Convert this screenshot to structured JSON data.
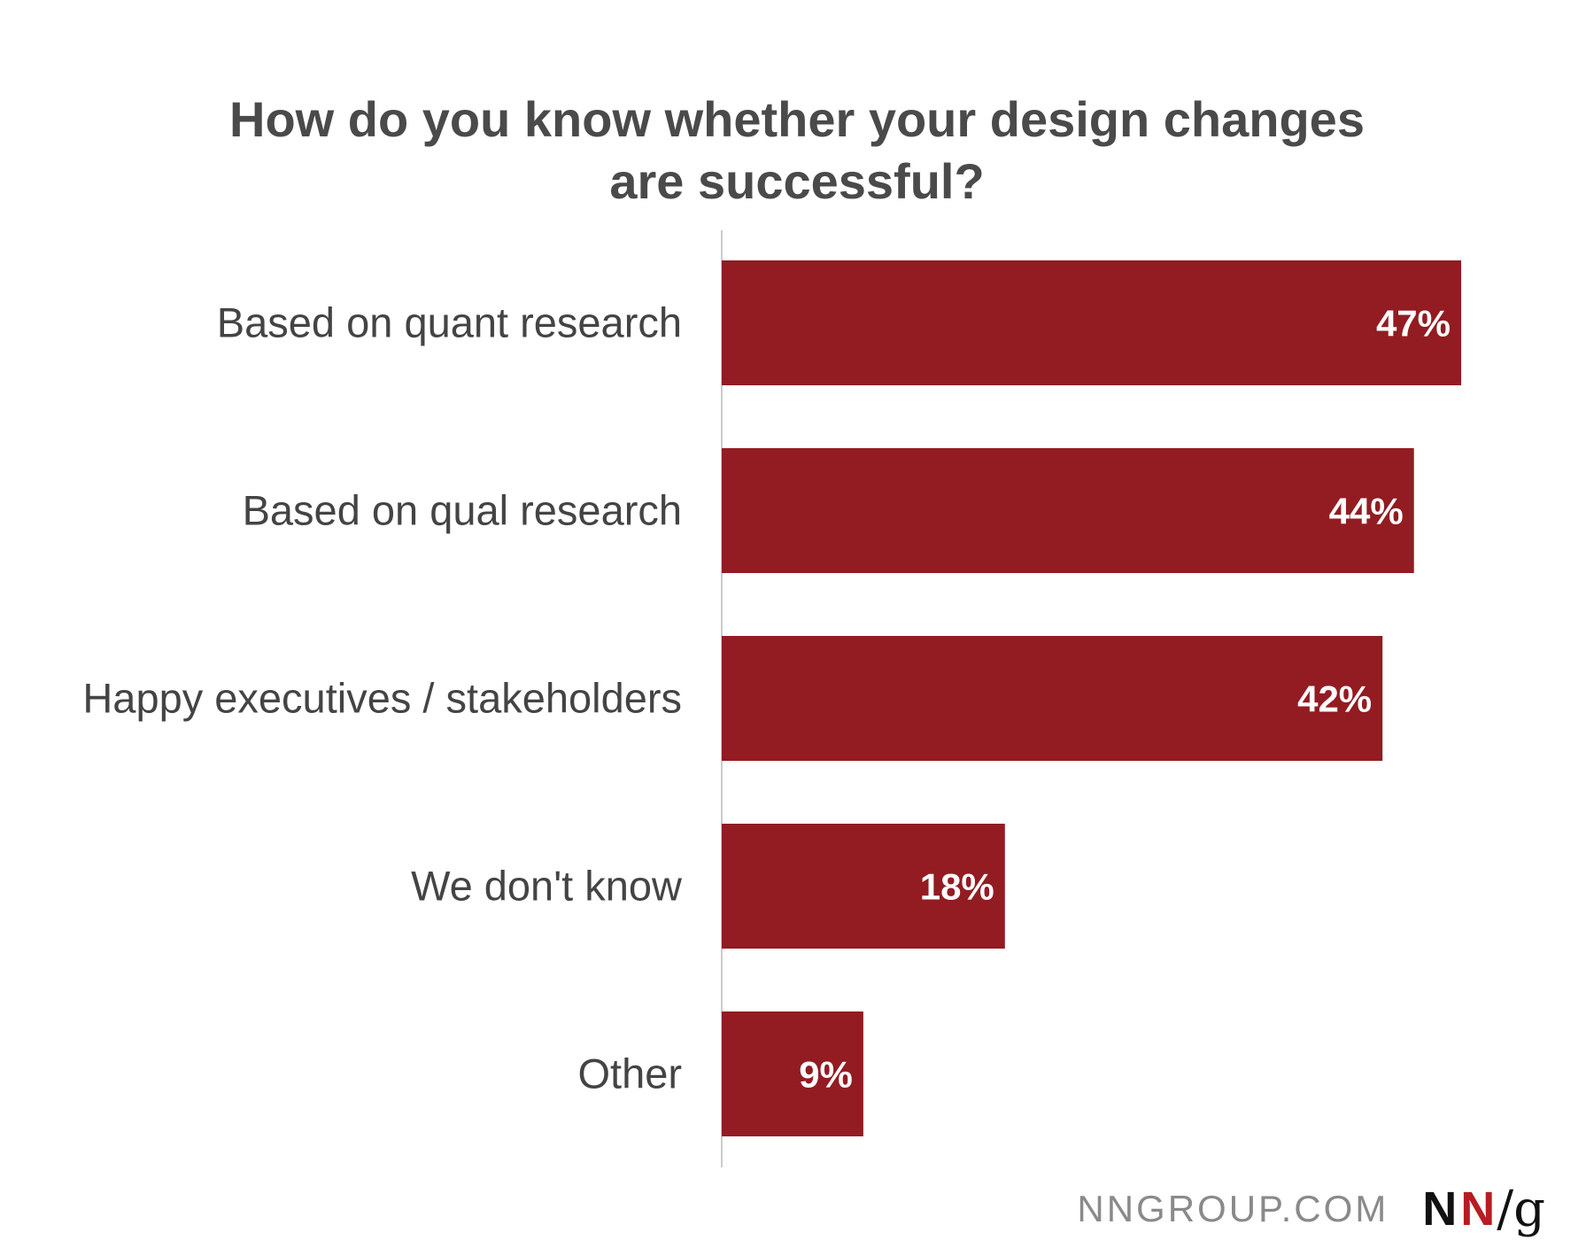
{
  "chart_data": {
    "type": "bar",
    "orientation": "horizontal",
    "title": "How do you know whether your design changes are successful?",
    "title_lines": [
      "How do you know whether your design changes",
      "are successful?"
    ],
    "categories": [
      "Based on quant research",
      "Based on qual research",
      "Happy executives / stakeholders",
      "We don't know",
      "Other"
    ],
    "values": [
      47,
      44,
      42,
      18,
      9
    ],
    "value_labels": [
      "47%",
      "44%",
      "42%",
      "18%",
      "9%"
    ],
    "unit": "%",
    "xlim": [
      0,
      47
    ],
    "bar_color": "#921c22",
    "grid": false,
    "legend": "none"
  },
  "footer": {
    "site": "NNGROUP.COM",
    "logo_n1": "N",
    "logo_n2": "N",
    "logo_slash_g": "/g"
  },
  "colors": {
    "bar": "#921c22",
    "logo_red": "#b71c24",
    "text": "#444444"
  }
}
